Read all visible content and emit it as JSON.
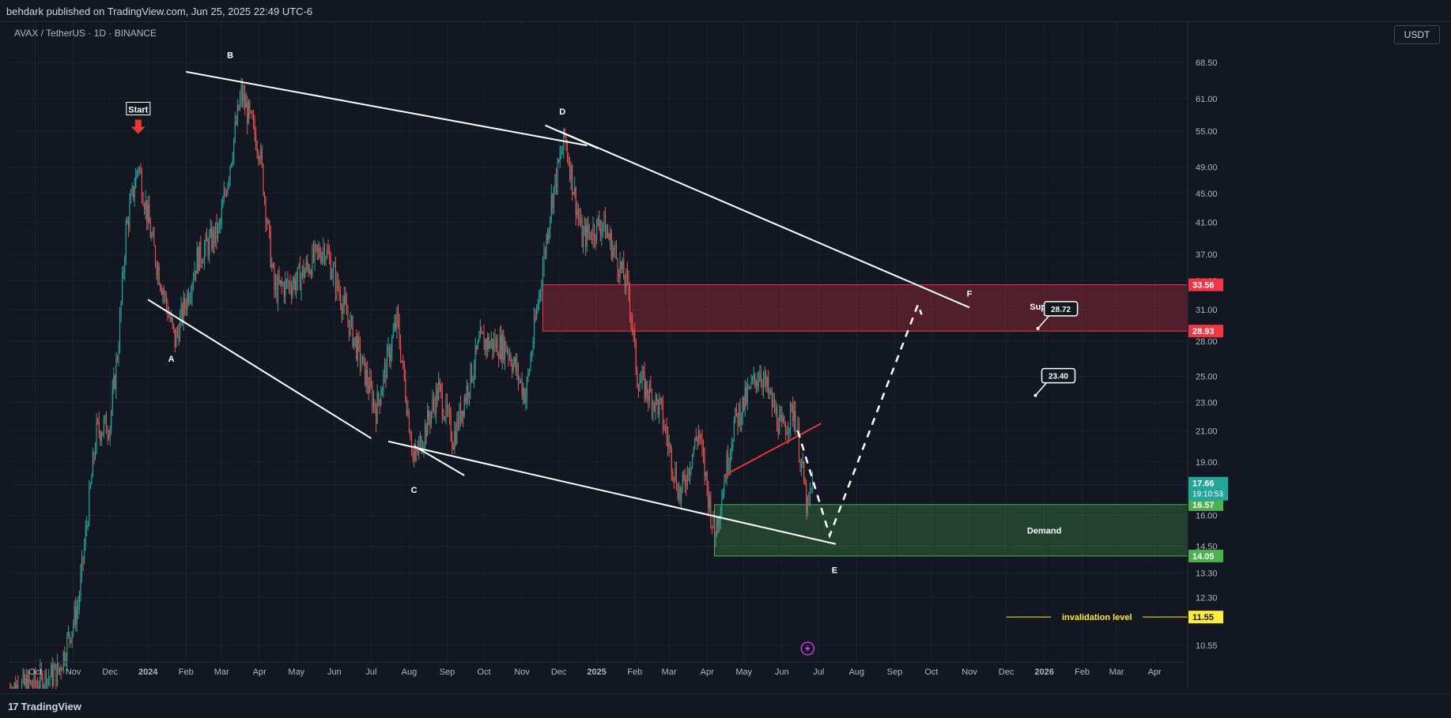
{
  "header": {
    "published": "behdark published on TradingView.com, Jun 25, 2025 22:49 UTC-6"
  },
  "symbol": {
    "label": "AVAX / TetherUS · 1D · BINANCE"
  },
  "currency": "USDT",
  "footer": {
    "brand": "TradingView",
    "brand_icon": "tradingview-logo-icon"
  },
  "chart_data": {
    "type": "candlestick",
    "title": "",
    "symbol": "AVAX / TetherUS",
    "interval": "1D",
    "exchange": "BINANCE",
    "y_scale": "log",
    "ylim": [
      10.0,
      78.0
    ],
    "xlim": [
      "2023-09-10",
      "2026-04-28"
    ],
    "grid": true,
    "y_ticks": [
      10.55,
      12.3,
      13.3,
      14.5,
      16.0,
      17.66,
      19.0,
      21.0,
      23.0,
      25.0,
      28.0,
      31.0,
      34.0,
      37.0,
      41.0,
      45.0,
      49.0,
      55.0,
      61.0,
      68.5
    ],
    "y_tick_labels": [
      "10.55",
      "12.30",
      "13.30",
      "14.50",
      "16.00",
      "",
      "19.00",
      "21.00",
      "23.00",
      "25.00",
      "28.00",
      "31.00",
      "34.00",
      "37.00",
      "41.00",
      "45.00",
      "49.00",
      "55.00",
      "61.00",
      "68.50"
    ],
    "x_ticks": [
      {
        "date": "2023-10-01",
        "label": "Oct"
      },
      {
        "date": "2023-11-01",
        "label": "Nov"
      },
      {
        "date": "2023-12-01",
        "label": "Dec"
      },
      {
        "date": "2024-01-01",
        "label": "2024"
      },
      {
        "date": "2024-02-01",
        "label": "Feb"
      },
      {
        "date": "2024-03-01",
        "label": "Mar"
      },
      {
        "date": "2024-04-01",
        "label": "Apr"
      },
      {
        "date": "2024-05-01",
        "label": "May"
      },
      {
        "date": "2024-06-01",
        "label": "Jun"
      },
      {
        "date": "2024-07-01",
        "label": "Jul"
      },
      {
        "date": "2024-08-01",
        "label": "Aug"
      },
      {
        "date": "2024-09-01",
        "label": "Sep"
      },
      {
        "date": "2024-10-01",
        "label": "Oct"
      },
      {
        "date": "2024-11-01",
        "label": "Nov"
      },
      {
        "date": "2024-12-01",
        "label": "Dec"
      },
      {
        "date": "2025-01-01",
        "label": "2025"
      },
      {
        "date": "2025-02-01",
        "label": "Feb"
      },
      {
        "date": "2025-03-01",
        "label": "Mar"
      },
      {
        "date": "2025-04-01",
        "label": "Apr"
      },
      {
        "date": "2025-05-01",
        "label": "May"
      },
      {
        "date": "2025-06-01",
        "label": "Jun"
      },
      {
        "date": "2025-07-01",
        "label": "Jul"
      },
      {
        "date": "2025-08-01",
        "label": "Aug"
      },
      {
        "date": "2025-09-01",
        "label": "Sep"
      },
      {
        "date": "2025-10-01",
        "label": "Oct"
      },
      {
        "date": "2025-11-01",
        "label": "Nov"
      },
      {
        "date": "2025-12-01",
        "label": "Dec"
      },
      {
        "date": "2026-01-01",
        "label": "2026"
      },
      {
        "date": "2026-02-01",
        "label": "Feb"
      },
      {
        "date": "2026-03-01",
        "label": "Mar"
      },
      {
        "date": "2026-04-01",
        "label": "Apr"
      }
    ],
    "price_path": [
      {
        "date": "2023-09-10",
        "close": 9.2
      },
      {
        "date": "2023-10-01",
        "close": 9.3
      },
      {
        "date": "2023-10-20",
        "close": 9.7
      },
      {
        "date": "2023-11-05",
        "close": 12.0
      },
      {
        "date": "2023-11-20",
        "close": 21.0
      },
      {
        "date": "2023-12-01",
        "close": 21.5
      },
      {
        "date": "2023-12-08",
        "close": 28.0
      },
      {
        "date": "2023-12-14",
        "close": 40.0
      },
      {
        "date": "2023-12-24",
        "close": 49.5
      },
      {
        "date": "2024-01-05",
        "close": 38.0
      },
      {
        "date": "2024-01-23",
        "close": 28.0
      },
      {
        "date": "2024-02-10",
        "close": 36.5
      },
      {
        "date": "2024-02-28",
        "close": 40.0
      },
      {
        "date": "2024-03-17",
        "close": 62.0
      },
      {
        "date": "2024-04-01",
        "close": 52.0
      },
      {
        "date": "2024-04-13",
        "close": 33.0
      },
      {
        "date": "2024-05-01",
        "close": 34.0
      },
      {
        "date": "2024-05-24",
        "close": 38.0
      },
      {
        "date": "2024-06-15",
        "close": 29.0
      },
      {
        "date": "2024-07-05",
        "close": 22.5
      },
      {
        "date": "2024-07-22",
        "close": 30.0
      },
      {
        "date": "2024-08-05",
        "close": 19.0
      },
      {
        "date": "2024-08-25",
        "close": 24.0
      },
      {
        "date": "2024-09-06",
        "close": 20.5
      },
      {
        "date": "2024-09-28",
        "close": 28.0
      },
      {
        "date": "2024-10-20",
        "close": 27.5
      },
      {
        "date": "2024-11-04",
        "close": 23.5
      },
      {
        "date": "2024-11-25",
        "close": 44.0
      },
      {
        "date": "2024-12-06",
        "close": 54.0
      },
      {
        "date": "2024-12-20",
        "close": 39.0
      },
      {
        "date": "2025-01-06",
        "close": 41.0
      },
      {
        "date": "2025-01-27",
        "close": 33.0
      },
      {
        "date": "2025-02-03",
        "close": 25.0
      },
      {
        "date": "2025-02-22",
        "close": 22.5
      },
      {
        "date": "2025-03-10",
        "close": 17.0
      },
      {
        "date": "2025-03-25",
        "close": 21.0
      },
      {
        "date": "2025-04-07",
        "close": 15.0
      },
      {
        "date": "2025-04-23",
        "close": 21.5
      },
      {
        "date": "2025-05-14",
        "close": 25.5
      },
      {
        "date": "2025-06-01",
        "close": 21.0
      },
      {
        "date": "2025-06-11",
        "close": 22.5
      },
      {
        "date": "2025-06-22",
        "close": 16.2
      },
      {
        "date": "2025-06-26",
        "close": 17.66
      }
    ],
    "last_price": 17.66,
    "countdown": "19:10:53",
    "zones": [
      {
        "name": "Supply",
        "from": 28.93,
        "to": 33.56,
        "start": "2024-11-18",
        "color": "#f23645"
      },
      {
        "name": "Demand",
        "from": 14.05,
        "to": 16.57,
        "start": "2025-04-07",
        "color": "#4caf50"
      }
    ],
    "price_labels": [
      {
        "value": 33.56,
        "label": "33.56",
        "color": "#f23645"
      },
      {
        "value": 28.93,
        "label": "28.93",
        "color": "#f23645"
      },
      {
        "value": 16.57,
        "label": "16.57",
        "color": "#4caf50"
      },
      {
        "value": 14.05,
        "label": "14.05",
        "color": "#4caf50"
      },
      {
        "value": 11.55,
        "label": "11.55",
        "color": "#ffeb3b"
      }
    ],
    "invalidation": {
      "value": 11.55,
      "label": "invalidation level",
      "from": "2025-12-01",
      "color": "#ffeb3b"
    },
    "trendlines": [
      {
        "from": {
          "date": "2024-02-01",
          "price": 66.5
        },
        "to": {
          "date": "2024-12-24",
          "price": 52.5
        },
        "color": "#ffffff"
      },
      {
        "from": {
          "date": "2024-12-01",
          "price": 55.0
        },
        "to": {
          "date": "2025-11-01",
          "price": 31.2
        },
        "color": "#ffffff"
      },
      {
        "from": {
          "date": "2024-01-01",
          "price": 32.0
        },
        "to": {
          "date": "2024-07-01",
          "price": 20.5
        },
        "color": "#ffffff"
      },
      {
        "from": {
          "date": "2024-07-15",
          "price": 20.3
        },
        "to": {
          "date": "2025-07-15",
          "price": 14.6
        },
        "color": "#ffffff"
      },
      {
        "from": {
          "date": "2024-08-05",
          "price": 20.0
        },
        "to": {
          "date": "2024-09-15",
          "price": 18.2
        },
        "color": "#ffffff"
      },
      {
        "from": {
          "date": "2024-11-20",
          "price": 56.0
        },
        "to": {
          "date": "2025-01-02",
          "price": 52.0
        },
        "color": "#ffffff"
      },
      {
        "from": {
          "date": "2025-04-15",
          "price": 18.2
        },
        "to": {
          "date": "2025-07-03",
          "price": 21.5
        },
        "color": "#e53935"
      }
    ],
    "projection": [
      {
        "date": "2025-06-14",
        "price": 21.0
      },
      {
        "date": "2025-07-10",
        "price": 15.0
      },
      {
        "date": "2025-09-20",
        "price": 31.5
      },
      {
        "date": "2025-09-23",
        "price": 30.5
      }
    ],
    "wave_labels": [
      {
        "label": "Start",
        "date": "2023-12-24",
        "price": 58.5,
        "boxed": true
      },
      {
        "label": "A",
        "date": "2024-01-20",
        "price": 26.2,
        "boxed": false
      },
      {
        "label": "B",
        "date": "2024-03-08",
        "price": 69.5,
        "boxed": false
      },
      {
        "label": "C",
        "date": "2024-08-05",
        "price": 17.2,
        "boxed": false
      },
      {
        "label": "D",
        "date": "2024-12-04",
        "price": 58.0,
        "boxed": false
      },
      {
        "label": "E",
        "date": "2025-07-14",
        "price": 13.3,
        "boxed": false
      },
      {
        "label": "F",
        "date": "2025-11-01",
        "price": 32.3,
        "boxed": false
      },
      {
        "label": "Supply",
        "date": "2026-01-01",
        "price": 31.0,
        "boxed": false
      },
      {
        "label": "Demand",
        "date": "2026-01-01",
        "price": 15.1,
        "boxed": false
      }
    ],
    "callouts": [
      {
        "label": "28.72",
        "date": "2026-01-01",
        "price": 31.0
      },
      {
        "label": "23.40",
        "date": "2025-12-30",
        "price": 25.0
      }
    ],
    "colors": {
      "up": "#26a69a",
      "down": "#ef5350",
      "background": "#131722",
      "grid": "#1e222d",
      "last_price": "#26a69a"
    }
  }
}
